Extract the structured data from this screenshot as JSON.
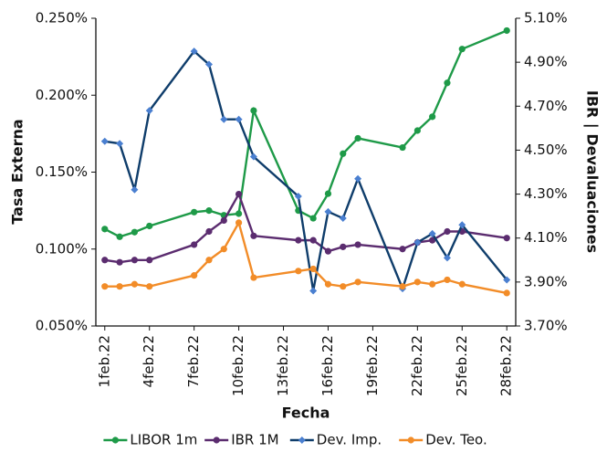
{
  "chart_data": {
    "type": "line",
    "x_label": "Fecha",
    "y_label": "Tasa Externa",
    "y2_label": "IBR | Devaluaciones",
    "x": [
      1,
      2,
      3,
      4,
      7,
      8,
      9,
      10,
      11,
      14,
      15,
      16,
      17,
      18,
      21,
      22,
      23,
      24,
      25,
      28
    ],
    "xlim": [
      0.4,
      28.6
    ],
    "xticks": [
      {
        "value": 1,
        "label": "1feb.22"
      },
      {
        "value": 4,
        "label": "4feb.22"
      },
      {
        "value": 7,
        "label": "7feb.22"
      },
      {
        "value": 10,
        "label": "10feb.22"
      },
      {
        "value": 13,
        "label": "13feb.22"
      },
      {
        "value": 16,
        "label": "16feb.22"
      },
      {
        "value": 19,
        "label": "19feb.22"
      },
      {
        "value": 22,
        "label": "22feb.22"
      },
      {
        "value": 25,
        "label": "25feb.22"
      },
      {
        "value": 28,
        "label": "28feb.22"
      }
    ],
    "ylim": [
      0.05,
      0.25
    ],
    "yticks": [
      {
        "value": 0.05,
        "label": "0.050%"
      },
      {
        "value": 0.1,
        "label": "0.100%"
      },
      {
        "value": 0.15,
        "label": "0.150%"
      },
      {
        "value": 0.2,
        "label": "0.200%"
      },
      {
        "value": 0.25,
        "label": "0.250%"
      }
    ],
    "y2lim": [
      3.7,
      5.1
    ],
    "y2ticks": [
      {
        "value": 3.7,
        "label": "3.70%"
      },
      {
        "value": 3.9,
        "label": "3.90%"
      },
      {
        "value": 4.1,
        "label": "4.10%"
      },
      {
        "value": 4.3,
        "label": "4.30%"
      },
      {
        "value": 4.5,
        "label": "4.50%"
      },
      {
        "value": 4.7,
        "label": "4.70%"
      },
      {
        "value": 4.9,
        "label": "4.90%"
      },
      {
        "value": 5.1,
        "label": "5.10%"
      }
    ],
    "legend": "bottom",
    "series": [
      {
        "name": "LIBOR 1m",
        "color": "#1e9a48",
        "marker": "circle",
        "marker_color": "#1e9a48",
        "values": [
          0.113,
          0.108,
          0.111,
          0.115,
          0.124,
          0.125,
          0.122,
          0.123,
          0.19,
          0.125,
          0.12,
          0.136,
          0.162,
          0.172,
          0.166,
          0.177,
          0.186,
          0.208,
          0.23,
          0.242
        ]
      },
      {
        "name": "IBR 1M",
        "color": "#5b2c6f",
        "marker": "circle",
        "marker_color": "#5b2c6f",
        "axis": "y2",
        "values": [
          4.0,
          3.99,
          4.0,
          4.0,
          4.07,
          4.13,
          4.18,
          4.3,
          4.11,
          4.09,
          4.09,
          4.04,
          4.06,
          4.07,
          4.05,
          4.08,
          4.09,
          4.13,
          4.13,
          4.1
        ]
      },
      {
        "name": "Dev. Imp.",
        "color": "#0f3d6b",
        "marker": "diamond",
        "marker_color": "#4a7fd0",
        "axis": "y2",
        "values": [
          4.54,
          4.53,
          4.32,
          4.68,
          4.95,
          4.89,
          4.64,
          4.64,
          4.47,
          4.29,
          3.86,
          4.22,
          4.19,
          4.37,
          3.87,
          4.08,
          4.12,
          4.01,
          4.16,
          3.91
        ]
      },
      {
        "name": "Dev. Teo.",
        "color": "#f28c28",
        "marker": "circle",
        "marker_color": "#f28c28",
        "axis": "y2",
        "values": [
          3.88,
          3.88,
          3.89,
          3.88,
          3.93,
          4.0,
          4.05,
          4.17,
          3.92,
          3.95,
          3.96,
          3.89,
          3.88,
          3.9,
          3.88,
          3.9,
          3.89,
          3.91,
          3.89,
          3.85
        ]
      }
    ]
  }
}
